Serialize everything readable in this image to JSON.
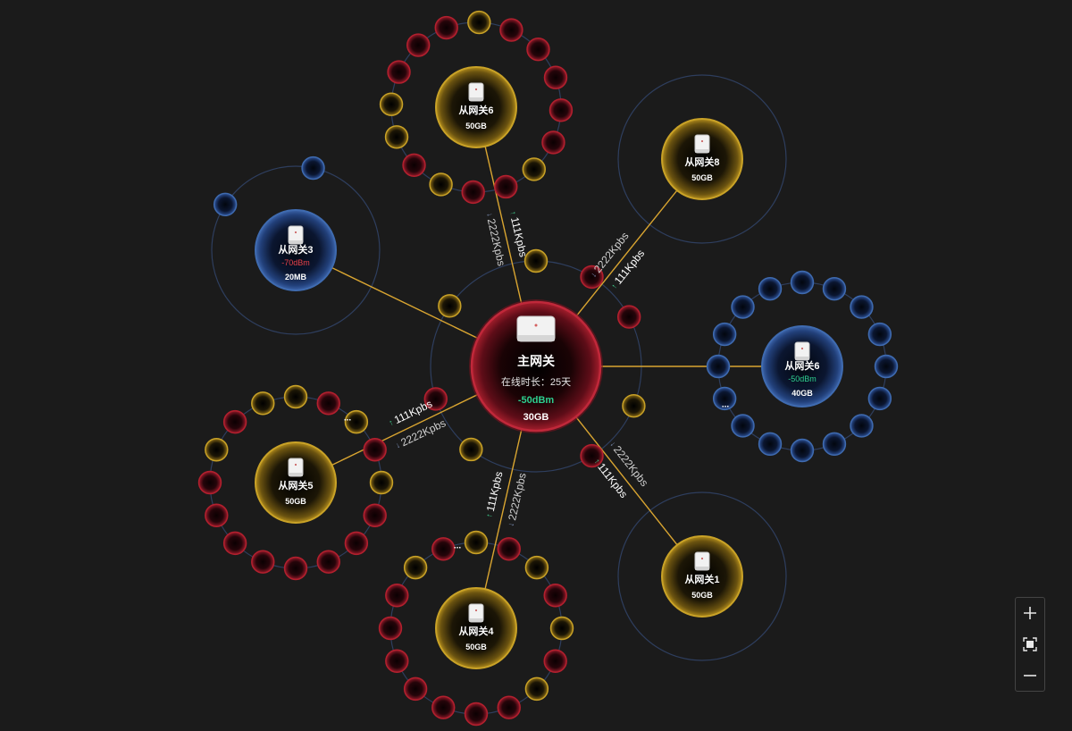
{
  "main_gateway": {
    "name": "主网关",
    "uptime": "在线时长：25天",
    "signal": "-50dBm",
    "traffic": "30GB"
  },
  "sub_gateways": [
    {
      "id": "gw6-top",
      "name": "从网关6",
      "signal": "",
      "traffic": "50GB",
      "theme": "gold",
      "sat_count": 16,
      "sat_pattern": [
        "gold",
        "red",
        "red",
        "red",
        "red",
        "red",
        "gold",
        "red",
        "red",
        "gold",
        "red",
        "gold",
        "gold",
        "red",
        "red",
        "red"
      ],
      "sat_more": false
    },
    {
      "id": "gw8",
      "name": "从网关8",
      "signal": "",
      "traffic": "50GB",
      "theme": "gold",
      "sat_count": 0,
      "sat_pattern": [],
      "sat_more": false
    },
    {
      "id": "gw6-right",
      "name": "从网关6",
      "signal": "-50dBm",
      "signal_color": "#2ecf8f",
      "traffic": "40GB",
      "theme": "blue",
      "sat_count": 16,
      "sat_pattern": [
        "blue",
        "blue",
        "blue",
        "blue",
        "blue",
        "blue",
        "blue",
        "blue",
        "blue",
        "blue",
        "blue",
        "blue",
        "blue",
        "blue",
        "blue",
        "blue"
      ],
      "sat_more": true
    },
    {
      "id": "gw1",
      "name": "从网关1",
      "signal": "",
      "traffic": "50GB",
      "theme": "gold",
      "sat_count": 0,
      "sat_pattern": [],
      "sat_more": false
    },
    {
      "id": "gw4",
      "name": "从网关4",
      "signal": "",
      "traffic": "50GB",
      "theme": "gold",
      "sat_count": 16,
      "sat_pattern": [
        "gold",
        "red",
        "gold",
        "red",
        "gold",
        "red",
        "gold",
        "red",
        "red",
        "red",
        "red",
        "red",
        "red",
        "red",
        "gold",
        "red"
      ],
      "sat_more": true
    },
    {
      "id": "gw5",
      "name": "从网关5",
      "signal": "",
      "traffic": "50GB",
      "theme": "gold",
      "sat_count": 16,
      "sat_pattern": [
        "gold",
        "red",
        "gold",
        "red",
        "gold",
        "red",
        "red",
        "red",
        "red",
        "red",
        "red",
        "red",
        "red",
        "gold",
        "red",
        "gold"
      ],
      "sat_more": true
    },
    {
      "id": "gw3",
      "name": "从网关3",
      "signal": "-70dBm",
      "signal_color": "#e8424a",
      "traffic": "20MB",
      "theme": "blue",
      "sat_count": 2,
      "sat_pattern": [
        "blue",
        "blue"
      ],
      "sat_more": false
    }
  ],
  "links": [
    {
      "to": "gw6-top",
      "up": "111Kpbs",
      "down": "2222Kpbs",
      "labeled": true
    },
    {
      "to": "gw8",
      "up": "111Kpbs",
      "down": "2222Kpbs",
      "labeled": true
    },
    {
      "to": "gw6-right",
      "up": "",
      "down": "",
      "labeled": false
    },
    {
      "to": "gw1",
      "up": "111Kpbs",
      "down": "2222Kpbs",
      "labeled": true
    },
    {
      "to": "gw4",
      "up": "111Kpbs",
      "down": "2222Kpbs",
      "labeled": true
    },
    {
      "to": "gw5",
      "up": "111Kpbs",
      "down": "2222Kpbs",
      "labeled": true
    },
    {
      "to": "gw3",
      "up": "",
      "down": "",
      "labeled": false
    }
  ],
  "main_satellites": [
    "red",
    "gold",
    "red",
    "gold",
    "red",
    "gold",
    "red",
    "gold"
  ],
  "more_label": "...",
  "colors": {
    "gold": "#c9a227",
    "red": "#b3202e",
    "blue": "#3f6bb0",
    "link": "#d9a531",
    "ring": "#2e3e5e",
    "up_arrow": "#3fcf8e",
    "down_arrow": "#7d8fb5"
  },
  "controls": {
    "zoom_in_icon": "plus-icon",
    "fit_icon": "fit-screen-icon",
    "zoom_out_icon": "minus-icon"
  }
}
